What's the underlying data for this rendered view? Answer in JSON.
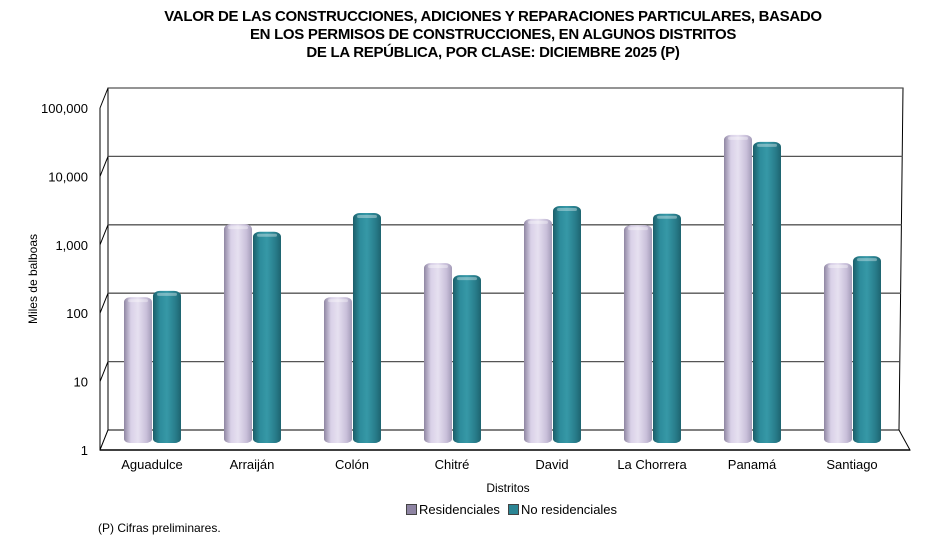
{
  "chart_data": {
    "type": "bar",
    "subtype": "3d-clustered-column",
    "title": [
      "VALOR DE LAS CONSTRUCCIONES, ADICIONES Y REPARACIONES PARTICULARES, BASADO",
      "EN LOS PERMISOS DE CONSTRUCCIONES, EN ALGUNOS DISTRITOS",
      "DE LA REPÚBLICA, POR CLASE: DICIEMBRE 2025 (P)"
    ],
    "xlabel": "Distritos",
    "ylabel": "Miles de balboas",
    "yscale": "log",
    "ylim": [
      1,
      100000
    ],
    "yticks": [
      "1",
      "10",
      "100",
      "1,000",
      "10,000",
      "100,000"
    ],
    "ytick_values": [
      1,
      10,
      100,
      1000,
      10000,
      100000
    ],
    "grid": true,
    "legend_position": "bottom",
    "categories": [
      "Aguadulce",
      "Arraiján",
      "Colón",
      "Chitré",
      "David",
      "La Chorrera",
      "Panamá",
      "Santiago"
    ],
    "series": [
      {
        "name": "Residenciales",
        "color": "#cfc6e0",
        "values": [
          134,
          1550,
          134,
          420,
          1850,
          1500,
          31000,
          420
        ]
      },
      {
        "name": "No residenciales",
        "color": "#2b8594",
        "values": [
          165,
          1200,
          2250,
          280,
          2850,
          2200,
          24500,
          530
        ]
      }
    ],
    "footnote": "(P) Cifras  preliminares."
  }
}
